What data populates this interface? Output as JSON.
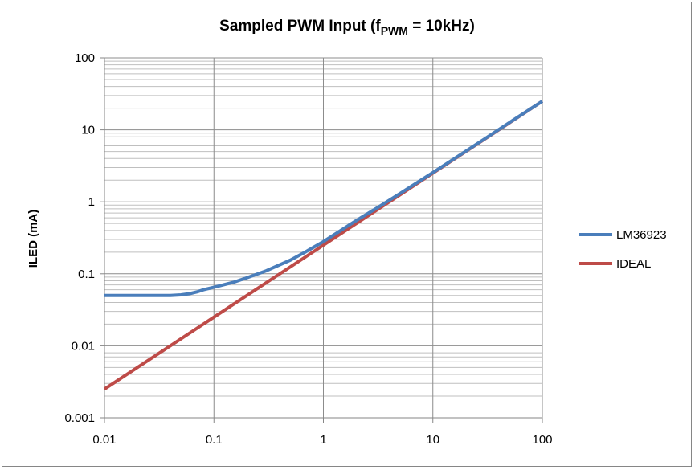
{
  "chart_data": {
    "type": "line",
    "title_main": "Sampled PWM Input (f",
    "title_sub": "PWM",
    "title_end": " = 10kHz)",
    "xlabel": "",
    "ylabel": "ILED (mA)",
    "x_scale": "log",
    "y_scale": "log",
    "xlim": [
      0.01,
      100
    ],
    "ylim": [
      0.001,
      100
    ],
    "x_ticks": [
      "0.01",
      "0.1",
      "1",
      "10",
      "100"
    ],
    "y_ticks": [
      "0.001",
      "0.01",
      "0.1",
      "1",
      "10",
      "100"
    ],
    "grid": true,
    "legend_position": "right",
    "series": [
      {
        "name": "LM36923",
        "color": "#4A7EBB",
        "x": [
          0.01,
          0.02,
          0.03,
          0.04,
          0.05,
          0.06,
          0.07,
          0.08,
          0.1,
          0.15,
          0.2,
          0.3,
          0.5,
          0.7,
          1,
          2,
          3,
          5,
          10,
          20,
          50,
          100
        ],
        "y": [
          0.05,
          0.05,
          0.05,
          0.05,
          0.051,
          0.053,
          0.056,
          0.06,
          0.065,
          0.076,
          0.088,
          0.11,
          0.155,
          0.205,
          0.28,
          0.55,
          0.8,
          1.3,
          2.55,
          5.05,
          12.6,
          25
        ]
      },
      {
        "name": "IDEAL",
        "color": "#BE4B48",
        "x": [
          0.01,
          100
        ],
        "y": [
          0.0025,
          25
        ]
      }
    ]
  }
}
